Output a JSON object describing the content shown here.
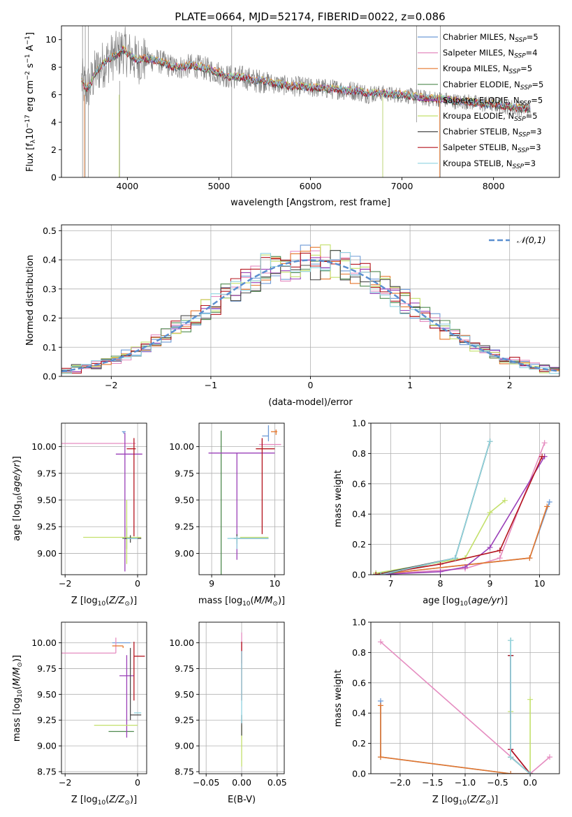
{
  "figure": {
    "title": "PLATE=0664, MJD=52174, FIBERID=0022, z=0.086"
  },
  "colors": {
    "Chabrier MILES": "#6d9ad6",
    "Salpeter MILES": "#e58cc0",
    "Kroupa MILES": "#e5762b",
    "Chabrier ELODIE": "#4f8a4f",
    "Salpeter ELODIE": "#9a3fb8",
    "Kroupa ELODIE": "#c3e06b",
    "Chabrier STELIB": "#4d4d4d",
    "Salpeter STELIB": "#b4141e",
    "Kroupa STELIB": "#8fd3e0",
    "data": "#808080",
    "gaussian": "#5b8fd0"
  },
  "chart_data": [
    {
      "id": "spectrum",
      "type": "line",
      "title": "PLATE=0664, MJD=52174, FIBERID=0022, z=0.086",
      "xlabel": "wavelength [Angstrom, rest frame]",
      "ylabel": "Flux [f$_\\lambda$10$^{-17}$ erg cm$^{-2}$ s$^{-1}$ A$^{-1}$]",
      "ylabel_parts": [
        "Flux [f",
        "λ",
        "10",
        "−17",
        " erg cm",
        "−2",
        " s",
        "−1",
        " A",
        "−1",
        "]"
      ],
      "xlim": [
        3280,
        8720
      ],
      "ylim": [
        0,
        11
      ],
      "xticks": [
        4000,
        5000,
        6000,
        7000,
        8000
      ],
      "yticks": [
        0,
        2,
        4,
        6,
        8,
        10
      ],
      "grid": false,
      "legend_placement": "top-right",
      "legend": [
        {
          "model": "Chabrier MILES",
          "label": "Chabrier MILES, N",
          "sub": "SSP",
          "eq": "=5"
        },
        {
          "model": "Salpeter MILES",
          "label": "Salpeter MILES, N",
          "sub": "SSP",
          "eq": "=4"
        },
        {
          "model": "Kroupa MILES",
          "label": "Kroupa MILES, N",
          "sub": "SSP",
          "eq": "=5"
        },
        {
          "model": "Chabrier ELODIE",
          "label": "Chabrier ELODIE, N",
          "sub": "SSP",
          "eq": "=5"
        },
        {
          "model": "Salpeter ELODIE",
          "label": "Salpeter ELODIE, N",
          "sub": "SSP",
          "eq": "=5"
        },
        {
          "model": "Kroupa ELODIE",
          "label": "Kroupa ELODIE, N",
          "sub": "SSP",
          "eq": "=5"
        },
        {
          "model": "Chabrier STELIB",
          "label": "Chabrier STELIB, N",
          "sub": "SSP",
          "eq": "=3"
        },
        {
          "model": "Salpeter STELIB",
          "label": "Salpeter STELIB, N",
          "sub": "SSP",
          "eq": "=3"
        },
        {
          "model": "Kroupa STELIB",
          "label": "Kroupa STELIB, N",
          "sub": "SSP",
          "eq": "=3"
        }
      ],
      "data_curve": {
        "x": [
          3500,
          3550,
          3600,
          3650,
          3700,
          3750,
          3800,
          3850,
          3900,
          3950,
          4000,
          4100,
          4200,
          4300,
          4400,
          4500,
          4600,
          4700,
          4800,
          4900,
          5000,
          5100,
          5200,
          5300,
          5400,
          5500,
          5600,
          5700,
          5800,
          5900,
          6000,
          6100,
          6200,
          6300,
          6400,
          6500,
          6600,
          6700,
          6800,
          6900,
          7000,
          7100,
          7200,
          7300,
          7400,
          7500,
          7600,
          7700,
          7800,
          7900,
          8000,
          8100,
          8200,
          8300,
          8400
        ],
        "y": [
          7.0,
          6.4,
          6.8,
          7.6,
          8.0,
          8.3,
          8.6,
          8.8,
          8.9,
          9.3,
          9.0,
          8.5,
          8.6,
          8.5,
          8.3,
          8.0,
          8.0,
          8.1,
          8.0,
          7.8,
          7.6,
          7.3,
          7.3,
          7.2,
          7.0,
          7.0,
          6.8,
          6.7,
          6.6,
          6.6,
          6.5,
          6.5,
          6.4,
          6.4,
          6.3,
          6.3,
          6.1,
          6.1,
          6.1,
          6.0,
          6.0,
          5.9,
          5.8,
          5.7,
          5.7,
          5.6,
          5.5,
          5.5,
          5.4,
          5.3,
          5.3,
          5.2,
          5.1,
          5.0,
          5.0
        ]
      },
      "model_offsets": [
        -0.05,
        0.05,
        0.3,
        -0.1,
        0.1,
        0.25,
        -0.15,
        -0.1,
        0.2
      ]
    },
    {
      "id": "residuals",
      "type": "step",
      "xlabel": "(data-model)/error",
      "ylabel": "Normed distribution",
      "xlim": [
        -2.5,
        2.5
      ],
      "ylim": [
        0,
        0.52
      ],
      "xticks": [
        -2,
        -1,
        0,
        1,
        2
      ],
      "yticks": [
        0.0,
        0.1,
        0.2,
        0.3,
        0.4,
        0.5
      ],
      "grid": true,
      "legend_placement": "top-right",
      "gaussian_label": "𝒩(0,1)",
      "bin_edges_start": -2.5,
      "bin_width": 0.1,
      "bins": 50
    },
    {
      "id": "age_vs_Z",
      "type": "errorbar",
      "xlabel": "Z [log$_{10}$(Z/Z$_\\odot$)]",
      "ylabel": "age  [log$_{10}$(age/yr)]",
      "xlim": [
        -2.1,
        0.25
      ],
      "ylim": [
        8.8,
        10.22
      ],
      "xticks": [
        -2,
        0
      ],
      "yticks": [
        9.0,
        9.25,
        9.5,
        9.75,
        10.0
      ],
      "grid": true,
      "points": [
        {
          "model": "Chabrier MILES",
          "x": -0.38,
          "xerr": [
            0.05,
            0.05
          ],
          "y": 10.14,
          "yerr": [
            0.02,
            0.0
          ]
        },
        {
          "model": "Salpeter MILES",
          "x": -0.6,
          "xerr": [
            1.55,
            0.55
          ],
          "y": 10.03,
          "yerr": [
            0.0,
            0.0
          ]
        },
        {
          "model": "Kroupa MILES",
          "x": -0.38,
          "xerr": [
            0.0,
            0.0
          ],
          "y": 10.14,
          "yerr": [
            0.0,
            0.0
          ]
        },
        {
          "model": "Chabrier ELODIE",
          "x": -0.3,
          "xerr": [
            0.12,
            0.1
          ],
          "y": 9.14,
          "yerr": [
            0.1,
            0.1
          ]
        },
        {
          "model": "Salpeter ELODIE",
          "x": -0.35,
          "xerr": [
            0.25,
            0.48
          ],
          "y": 9.93,
          "yerr": [
            1.1,
            0.2
          ]
        },
        {
          "model": "Kroupa ELODIE",
          "x": -0.3,
          "xerr": [
            1.2,
            0.4
          ],
          "y": 9.15,
          "yerr": [
            0.25,
            0.35
          ]
        },
        {
          "model": "Chabrier STELIB",
          "x": -0.2,
          "xerr": [
            0.15,
            0.3
          ],
          "y": 9.14,
          "yerr": [
            0.04,
            0.03
          ]
        },
        {
          "model": "Salpeter STELIB",
          "x": -0.1,
          "xerr": [
            0.2,
            0.05
          ],
          "y": 9.98,
          "yerr": [
            0.82,
            0.1
          ]
        },
        {
          "model": "Kroupa STELIB",
          "x": -0.3,
          "xerr": [
            0.0,
            0.3
          ],
          "y": 9.14,
          "yerr": [
            0.0,
            0.0
          ]
        }
      ]
    },
    {
      "id": "age_vs_mass",
      "type": "errorbar",
      "xlabel": "mass [log$_{10}$(M/M$_\\odot$)]",
      "xlim": [
        8.8,
        10.15
      ],
      "ylim": [
        8.8,
        10.22
      ],
      "xticks": [
        9,
        10
      ],
      "yticks": [
        9.0,
        9.25,
        9.5,
        9.75,
        10.0
      ],
      "grid": true,
      "points": [
        {
          "model": "Chabrier MILES",
          "x": 9.9,
          "xerr": [
            0.1,
            0.0
          ],
          "y": 10.1,
          "yerr": [
            0.05,
            0.1
          ]
        },
        {
          "model": "Salpeter MILES",
          "x": 9.8,
          "xerr": [
            0.05,
            0.3
          ],
          "y": 10.02,
          "yerr": [
            0.02,
            0.05
          ]
        },
        {
          "model": "Kroupa MILES",
          "x": 10.02,
          "xerr": [
            0.08,
            0.02
          ],
          "y": 10.14,
          "yerr": [
            0.03,
            0.02
          ]
        },
        {
          "model": "Chabrier ELODIE",
          "x": 9.15,
          "xerr": [
            0.0,
            0.0
          ],
          "y": 9.15,
          "yerr": [
            0.35,
            1.0
          ]
        },
        {
          "model": "Salpeter ELODIE",
          "x": 9.4,
          "xerr": [
            0.45,
            0.6
          ],
          "y": 9.94,
          "yerr": [
            1.0,
            0.0
          ]
        },
        {
          "model": "Kroupa ELODIE",
          "x": 9.6,
          "xerr": [
            0.15,
            0.3
          ],
          "y": 9.15,
          "yerr": [
            0.0,
            0.0
          ]
        },
        {
          "model": "Chabrier STELIB",
          "x": 9.4,
          "xerr": [
            0.05,
            0.5
          ],
          "y": 9.14,
          "yerr": [
            0.05,
            0.04
          ]
        },
        {
          "model": "Salpeter STELIB",
          "x": 9.8,
          "xerr": [
            0.1,
            0.2
          ],
          "y": 9.98,
          "yerr": [
            0.8,
            0.1
          ]
        },
        {
          "model": "Kroupa STELIB",
          "x": 9.4,
          "xerr": [
            0.15,
            0.5
          ],
          "y": 9.14,
          "yerr": [
            0.1,
            0.02
          ]
        }
      ]
    },
    {
      "id": "weight_vs_age",
      "type": "line",
      "xlabel": "age  [log$_{10}$(age/yr)]",
      "ylabel": "mass weight",
      "xlim": [
        6.6,
        10.4
      ],
      "ylim": [
        0,
        1
      ],
      "xticks": [
        7,
        8,
        9,
        10
      ],
      "yticks": [
        0.0,
        0.2,
        0.4,
        0.6,
        0.8,
        1.0
      ],
      "grid": true,
      "series": [
        {
          "model": "Chabrier MILES",
          "x": [
            6.7,
            9.8,
            10.2
          ],
          "y": [
            0.0,
            0.11,
            0.48
          ]
        },
        {
          "model": "Salpeter MILES",
          "x": [
            6.7,
            8.5,
            9.2,
            10.1
          ],
          "y": [
            0.0,
            0.04,
            0.11,
            0.87
          ]
        },
        {
          "model": "Kroupa MILES",
          "x": [
            6.7,
            9.8,
            10.15
          ],
          "y": [
            0.0,
            0.11,
            0.45
          ]
        },
        {
          "model": "Chabrier ELODIE",
          "x": [
            6.7,
            7.0,
            8.3,
            9.0
          ],
          "y": [
            0.01,
            0.01,
            0.11,
            0.88
          ]
        },
        {
          "model": "Salpeter ELODIE",
          "x": [
            6.7,
            8.0,
            8.5,
            9.0,
            10.1
          ],
          "y": [
            0.0,
            0.02,
            0.05,
            0.18,
            0.78
          ]
        },
        {
          "model": "Kroupa ELODIE",
          "x": [
            6.7,
            8.5,
            9.0,
            9.3
          ],
          "y": [
            0.01,
            0.11,
            0.41,
            0.49
          ]
        },
        {
          "model": "Chabrier STELIB",
          "x": [
            6.7,
            8.3,
            9.0
          ],
          "y": [
            0.0,
            0.11,
            0.88
          ]
        },
        {
          "model": "Salpeter STELIB",
          "x": [
            6.7,
            8.0,
            9.2,
            10.05
          ],
          "y": [
            0.0,
            0.07,
            0.16,
            0.78
          ]
        },
        {
          "model": "Kroupa STELIB",
          "x": [
            6.8,
            8.3,
            9.0
          ],
          "y": [
            0.0,
            0.11,
            0.88
          ]
        }
      ]
    },
    {
      "id": "mass_vs_Z",
      "type": "errorbar",
      "xlabel": "Z [log$_{10}$(Z/Z$_\\odot$)]",
      "ylabel": "mass [log$_{10}$(M/M$_\\odot$)]",
      "xlim": [
        -2.1,
        0.25
      ],
      "ylim": [
        8.73,
        10.2
      ],
      "xticks": [
        -2,
        0
      ],
      "yticks": [
        8.75,
        9.0,
        9.25,
        9.5,
        9.75,
        10.0
      ],
      "grid": true,
      "points": [
        {
          "model": "Chabrier MILES",
          "x": -0.65,
          "xerr": [
            0.05,
            0.45
          ],
          "y": 10.0,
          "yerr": [
            0.0,
            0.0
          ]
        },
        {
          "model": "Salpeter MILES",
          "x": -0.6,
          "xerr": [
            1.5,
            0.0
          ],
          "y": 9.9,
          "yerr": [
            0.0,
            0.15
          ]
        },
        {
          "model": "Kroupa MILES",
          "x": -0.4,
          "xerr": [
            0.3,
            0.0
          ],
          "y": 9.97,
          "yerr": [
            0.02,
            0.0
          ]
        },
        {
          "model": "Chabrier ELODIE",
          "x": -0.3,
          "xerr": [
            0.5,
            0.2
          ],
          "y": 9.14,
          "yerr": [
            0.0,
            0.0
          ]
        },
        {
          "model": "Salpeter ELODIE",
          "x": -0.3,
          "xerr": [
            0.2,
            0.2
          ],
          "y": 9.68,
          "yerr": [
            0.6,
            0.2
          ]
        },
        {
          "model": "Kroupa ELODIE",
          "x": -0.3,
          "xerr": [
            0.9,
            0.3
          ],
          "y": 9.2,
          "yerr": [
            0.0,
            0.0
          ]
        },
        {
          "model": "Chabrier STELIB",
          "x": -0.2,
          "xerr": [
            0.0,
            0.3
          ],
          "y": 9.3,
          "yerr": [
            0.05,
            0.65
          ]
        },
        {
          "model": "Salpeter STELIB",
          "x": -0.1,
          "xerr": [
            0.0,
            0.3
          ],
          "y": 9.87,
          "yerr": [
            0.43,
            0.14
          ]
        },
        {
          "model": "Kroupa STELIB",
          "x": -0.1,
          "xerr": [
            0.0,
            0.2
          ],
          "y": 9.32,
          "yerr": [
            0.0,
            0.0
          ]
        }
      ]
    },
    {
      "id": "mass_vs_ebv",
      "type": "errorbar",
      "xlabel": "E(B-V)",
      "xlim": [
        -0.06,
        0.06
      ],
      "ylim": [
        8.73,
        10.2
      ],
      "xticks": [
        -0.05,
        0.0,
        0.05
      ],
      "yticks": [
        8.75,
        9.0,
        9.25,
        9.5,
        9.75,
        10.0
      ],
      "grid": true,
      "points": [
        {
          "model": "Salpeter MILES",
          "x": 0.0,
          "xerr": [
            0,
            0
          ],
          "y": 9.9,
          "yerr": [
            0.1,
            0.2
          ]
        },
        {
          "model": "Salpeter STELIB",
          "x": 0.0,
          "xerr": [
            0,
            0
          ],
          "y": 9.87,
          "yerr": [
            0.43,
            0.14
          ]
        },
        {
          "model": "Kroupa ELODIE",
          "x": 0.0,
          "xerr": [
            0,
            0
          ],
          "y": 9.2,
          "yerr": [
            0.4,
            0.0
          ]
        },
        {
          "model": "Chabrier STELIB",
          "x": 0.0,
          "xerr": [
            0,
            0
          ],
          "y": 9.2,
          "yerr": [
            0.1,
            0.1
          ]
        },
        {
          "model": "Kroupa STELIB",
          "x": 0.0,
          "xerr": [
            0,
            0
          ],
          "y": 9.32,
          "yerr": [
            0.1,
            0.6
          ]
        }
      ]
    },
    {
      "id": "weight_vs_Z",
      "type": "line",
      "xlabel": "Z [log$_{10}$(Z/Z$_\\odot$)]",
      "ylabel": "mass weight",
      "xlim": [
        -2.45,
        0.45
      ],
      "ylim": [
        0,
        1
      ],
      "xticks": [
        -2.0,
        -1.5,
        -1.0,
        -0.5,
        0.0
      ],
      "yticks": [
        0.0,
        0.2,
        0.4,
        0.6,
        0.8,
        1.0
      ],
      "grid": true,
      "series": [
        {
          "model": "Chabrier MILES",
          "x": [
            -2.3,
            -2.3,
            -0.3,
            -0.0
          ],
          "y": [
            0.48,
            0.11,
            0.0,
            0.0
          ]
        },
        {
          "model": "Salpeter MILES",
          "x": [
            -2.3,
            0.0,
            0.3
          ],
          "y": [
            0.87,
            0.0,
            0.11
          ]
        },
        {
          "model": "Kroupa MILES",
          "x": [
            -2.3,
            -2.3,
            -0.3,
            0.0
          ],
          "y": [
            0.45,
            0.11,
            0.0,
            0.0
          ]
        },
        {
          "model": "Chabrier ELODIE",
          "x": [
            -0.3,
            -0.3,
            0.0
          ],
          "y": [
            0.88,
            0.11,
            0.0
          ]
        },
        {
          "model": "Salpeter ELODIE",
          "x": [
            -0.3,
            -0.3,
            0.0
          ],
          "y": [
            0.78,
            0.16,
            0.0
          ]
        },
        {
          "model": "Kroupa ELODIE",
          "x": [
            0.0,
            0.0,
            -0.3,
            -0.3
          ],
          "y": [
            0.49,
            0.0,
            0.11,
            0.41
          ]
        },
        {
          "model": "Chabrier STELIB",
          "x": [
            -0.3,
            -0.3,
            0.0
          ],
          "y": [
            0.78,
            0.11,
            0.0
          ]
        },
        {
          "model": "Salpeter STELIB",
          "x": [
            -0.3,
            -0.3,
            0.0
          ],
          "y": [
            0.78,
            0.16,
            0.0
          ]
        },
        {
          "model": "Kroupa STELIB",
          "x": [
            -0.3,
            -0.3,
            0.0
          ],
          "y": [
            0.88,
            0.11,
            0.0
          ]
        }
      ]
    }
  ]
}
